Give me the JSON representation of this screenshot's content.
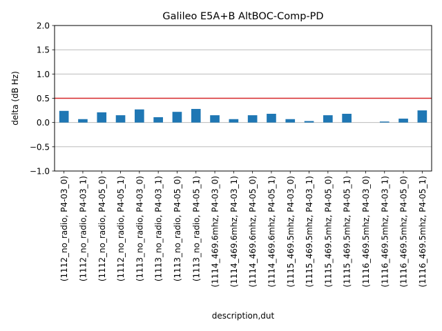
{
  "chart_data": {
    "type": "bar",
    "title": "Galileo E5A+B AltBOC-Comp-PD",
    "xlabel": "description,dut",
    "ylabel": "delta (dB Hz)",
    "ylim": [
      -1.0,
      2.0
    ],
    "yticks": [
      -1.0,
      -0.5,
      0.0,
      0.5,
      1.0,
      1.5,
      2.0
    ],
    "ytick_labels": [
      "−1.0",
      "−0.5",
      "0.0",
      "0.5",
      "1.0",
      "1.5",
      "2.0"
    ],
    "grid": "horizontal",
    "categories": [
      "(1112_no_radio, P4-03_0)",
      "(1112_no_radio, P4-03_1)",
      "(1112_no_radio, P4-05_0)",
      "(1112_no_radio, P4-05_1)",
      "(1113_no_radio, P4-03_0)",
      "(1113_no_radio, P4-03_1)",
      "(1113_no_radio, P4-05_0)",
      "(1113_no_radio, P4-05_1)",
      "(1114_469.6mhz, P4-03_0)",
      "(1114_469.6mhz, P4-03_1)",
      "(1114_469.6mhz, P4-05_0)",
      "(1114_469.6mhz, P4-05_1)",
      "(1115_469.5mhz, P4-03_0)",
      "(1115_469.5mhz, P4-03_1)",
      "(1115_469.5mhz, P4-05_0)",
      "(1115_469.5mhz, P4-05_1)",
      "(1116_469.5mhz, P4-03_0)",
      "(1116_469.5mhz, P4-03_1)",
      "(1116_469.5mhz, P4-05_0)",
      "(1116_469.5mhz, P4-05_1)"
    ],
    "values": [
      0.24,
      0.07,
      0.21,
      0.15,
      0.27,
      0.11,
      0.22,
      0.28,
      0.15,
      0.07,
      0.15,
      0.18,
      0.07,
      0.03,
      0.15,
      0.18,
      0.0,
      0.02,
      0.08,
      0.25
    ],
    "threshold": 0.5,
    "colors": {
      "bar": "#1f77b4",
      "threshold": "#d62728",
      "grid": "#b0b0b0"
    }
  }
}
